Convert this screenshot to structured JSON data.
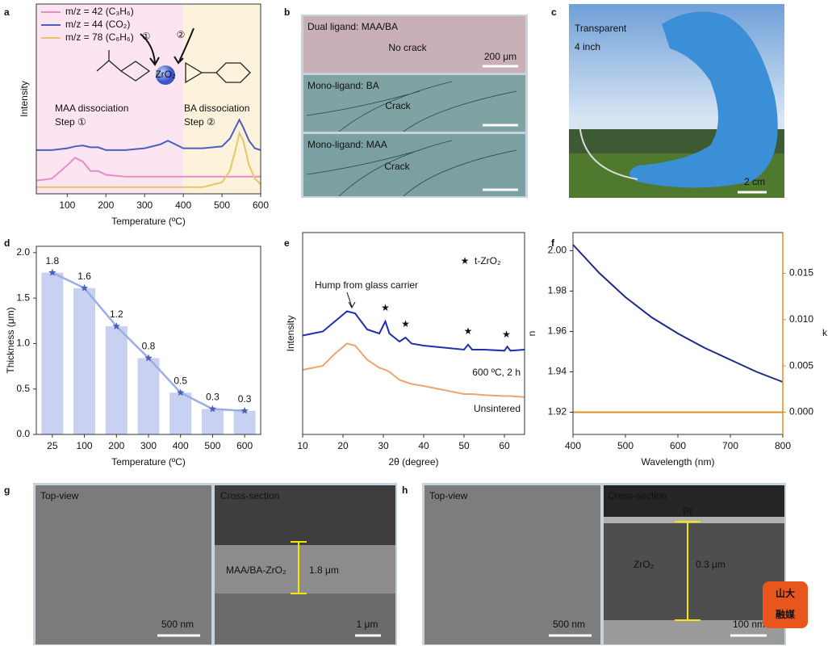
{
  "chart_data": [
    {
      "type": "line",
      "label": "a",
      "x_label": "Temperature (ºC)",
      "y_label": "Intensity",
      "xlim": [
        20,
        600
      ],
      "xticks": [
        100,
        200,
        300,
        400,
        500,
        600
      ],
      "ylim": [
        0,
        10
      ],
      "x": [
        20,
        60,
        100,
        120,
        140,
        160,
        180,
        200,
        250,
        300,
        340,
        360,
        380,
        400,
        450,
        500,
        520,
        535,
        545,
        555,
        570,
        585,
        600
      ],
      "series": [
        {
          "name": "m/z = 42 (C₃H₆)",
          "color": "#e88cc4",
          "values": [
            0.7,
            0.8,
            1.5,
            1.9,
            1.7,
            1.2,
            1.2,
            1.0,
            0.9,
            0.9,
            0.9,
            0.9,
            0.9,
            0.9,
            0.9,
            0.9,
            0.9,
            0.9,
            0.9,
            0.9,
            0.9,
            0.9,
            0.9
          ]
        },
        {
          "name": "m/z = 44 (CO₂)",
          "color": "#4a5fc1",
          "values": [
            2.3,
            2.3,
            2.4,
            2.5,
            2.55,
            2.45,
            2.45,
            2.3,
            2.3,
            2.4,
            2.6,
            2.8,
            2.6,
            2.4,
            2.4,
            2.5,
            2.9,
            3.5,
            3.9,
            3.5,
            2.8,
            2.4,
            2.3
          ]
        },
        {
          "name": "m/z = 78 (C₆H₆)",
          "color": "#e9c46a",
          "values": [
            0.35,
            0.35,
            0.35,
            0.35,
            0.35,
            0.35,
            0.35,
            0.35,
            0.35,
            0.35,
            0.35,
            0.35,
            0.35,
            0.35,
            0.35,
            0.6,
            1.2,
            2.3,
            3.2,
            2.8,
            1.5,
            0.8,
            0.5
          ]
        }
      ],
      "regions": [
        {
          "start": 20,
          "end": 400,
          "color": "#fce4f0"
        },
        {
          "start": 400,
          "end": 600,
          "color": "#fdf3dc"
        }
      ],
      "annotations": [
        {
          "text": "MAA dissociation",
          "color": "#d070b0"
        },
        {
          "text": "Step ①",
          "color": "#d070b0"
        },
        {
          "text": "BA dissociation",
          "color": "#d4a83a"
        },
        {
          "text": "Step ②",
          "color": "#d4a83a"
        }
      ],
      "molecule": {
        "center": "ZrO₂",
        "marks": [
          "①",
          "②"
        ]
      }
    },
    {
      "type": "bar",
      "label": "d",
      "x_label": "Temperature (ºC)",
      "y_label": "Thickness (μm)",
      "categories": [
        "25",
        "100",
        "200",
        "300",
        "400",
        "500",
        "600"
      ],
      "values": [
        1.78,
        1.61,
        1.19,
        0.84,
        0.46,
        0.28,
        0.26
      ],
      "value_labels": [
        "1.8",
        "1.6",
        "1.2",
        "0.8",
        "0.5",
        "0.3",
        "0.3"
      ],
      "color": "#c9d1f3",
      "line_color": "#9aaee6",
      "ylim": [
        0,
        2.07
      ],
      "yticks": [
        {
          "value": 0,
          "label": "0.0"
        },
        0.5,
        {
          "value": 1,
          "label": "1.0"
        },
        1.5,
        {
          "value": 2,
          "label": "2.0"
        }
      ]
    },
    {
      "type": "line",
      "label": "e",
      "x_label": "2θ (degree)",
      "y_label": "Intensity",
      "xlim": [
        10,
        65
      ],
      "xticks": [
        10,
        20,
        30,
        40,
        50,
        60
      ],
      "ylim": [
        0,
        10
      ],
      "x": [
        10,
        15,
        18,
        21,
        23,
        26,
        29,
        30.5,
        31.5,
        34,
        35.5,
        37,
        40,
        45,
        50,
        51,
        52,
        55,
        60,
        60.7,
        61.5,
        65
      ],
      "series": [
        {
          "name": "600 ºC, 2 h",
          "color": "#1f2fb0",
          "values": [
            4.9,
            5.1,
            5.6,
            6.1,
            6.0,
            5.2,
            5.0,
            5.6,
            5.0,
            4.6,
            4.8,
            4.5,
            4.4,
            4.3,
            4.2,
            4.45,
            4.2,
            4.2,
            4.15,
            4.35,
            4.15,
            4.2
          ]
        },
        {
          "name": "Unsintered",
          "color": "#eea470",
          "values": [
            3.2,
            3.4,
            4.0,
            4.5,
            4.4,
            3.7,
            3.3,
            3.2,
            3.1,
            2.7,
            2.6,
            2.5,
            2.4,
            2.2,
            2.0,
            2.0,
            2.0,
            1.95,
            1.9,
            1.9,
            1.9,
            1.85
          ]
        }
      ],
      "annotation": "Hump from glass carrier",
      "peak_symbol": "★",
      "peaks": [
        30.5,
        35.5,
        51,
        60.5
      ],
      "legend_text": "t-ZrO₂"
    },
    {
      "type": "line",
      "label": "f",
      "x_label": "Wavelength (nm)",
      "y_label": "n",
      "y2_label": "k",
      "xlim": [
        400,
        800
      ],
      "xticks": [
        400,
        500,
        600,
        700,
        800
      ],
      "ylim": [
        1.909,
        2.009
      ],
      "yticks": [
        1.92,
        1.94,
        1.96,
        1.98,
        {
          "value": 2,
          "label": "2.00"
        }
      ],
      "y2lim": [
        -0.0024,
        0.0194
      ],
      "y2ticks": [
        {
          "value": 0,
          "label": "0.000"
        },
        0.005,
        {
          "value": 0.01,
          "label": "0.010"
        },
        0.015
      ],
      "x": [
        400,
        450,
        500,
        550,
        600,
        650,
        700,
        750,
        800
      ],
      "series": [
        {
          "color": "#1c2a8c",
          "values": [
            2.003,
            1.989,
            1.977,
            1.967,
            1.959,
            1.952,
            1.946,
            1.94,
            1.935
          ]
        },
        {
          "color": "#e0901c",
          "axis": "y2",
          "values": [
            0,
            0,
            0,
            0,
            0,
            0,
            0,
            0,
            0
          ]
        }
      ]
    }
  ],
  "images": {
    "b": {
      "label": "b",
      "strips": [
        {
          "title": "Dual ligand: MAA/BA",
          "result": "No crack",
          "scale": "200 μm"
        },
        {
          "title": "Mono-ligand: BA",
          "result": "Crack"
        },
        {
          "title": "Mono-ligand: MAA",
          "result": "Crack"
        }
      ]
    },
    "c": {
      "label": "c",
      "texts": [
        "Transparent",
        "4 inch"
      ],
      "scale": "2 cm"
    },
    "g": {
      "label": "g",
      "left": {
        "title": "Top-view",
        "scale": "500 nm"
      },
      "right": {
        "title": "Cross-section",
        "layer": "MAA/BA-ZrO₂",
        "thickness": "1.8 μm",
        "scale": "1 μm"
      }
    },
    "h": {
      "label": "h",
      "left": {
        "title": "Top-view",
        "scale": "500 nm"
      },
      "right": {
        "title": "Cross-section",
        "cap": "Pt",
        "layer": "ZrO₂",
        "thickness": "0.3 μm",
        "scale": "100 nm"
      }
    },
    "watermark": [
      "山大",
      "融媒"
    ]
  }
}
